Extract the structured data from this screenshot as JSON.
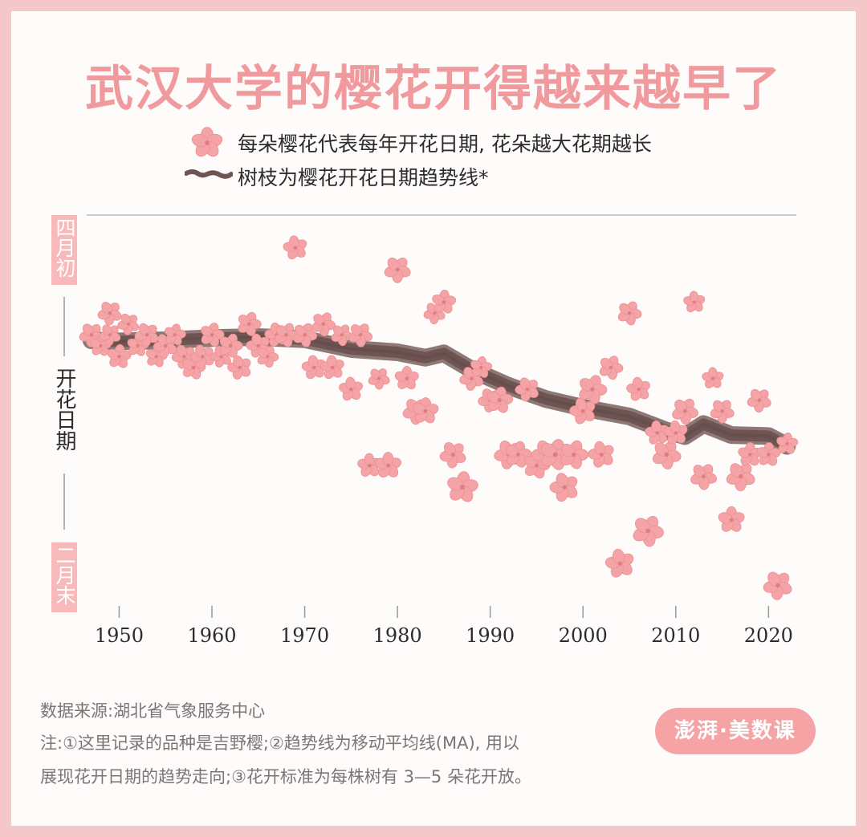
{
  "title": "武汉大学的樱花开得越来越早了",
  "legend": {
    "flower": "每朵樱花代表每年开花日期, 花朵越大花期越长",
    "branch": "树枝为樱花开花日期趋势线*"
  },
  "source": "数据来源:湖北省气象服务中心",
  "notes": [
    "注:①这里记录的品种是吉野樱;②趋势线为移动平均线(MA), 用以",
    "展现花开日期的趋势走向;③花开标准为每株树有 3—5 朵花开放。"
  ],
  "logo": "澎湃·美数课",
  "colors": {
    "title": "#f09a9d",
    "flower": "#f4a4a6",
    "flower_center": "#e07d82",
    "branch": "#6e5553",
    "label_box": "#f7b9ba"
  },
  "chart_data": {
    "type": "scatter",
    "y_axis": {
      "label": "开花日期",
      "top_label": "四月初",
      "bottom_label": "二月末",
      "range": [
        -35,
        2
      ]
    },
    "x_axis": {
      "ticks": [
        1950,
        1960,
        1970,
        1980,
        1990,
        2000,
        2010,
        2020
      ],
      "range": [
        1946.5,
        2023
      ]
    },
    "series": [
      {
        "points": [
          {
            "x": 1947,
            "y": -9,
            "s": 1
          },
          {
            "x": 1948,
            "y": -10,
            "s": 0.9
          },
          {
            "x": 1949,
            "y": -9,
            "s": 0.9
          },
          {
            "x": 1949,
            "y": -7,
            "s": 1
          },
          {
            "x": 1950,
            "y": -11,
            "s": 1
          },
          {
            "x": 1951,
            "y": -8,
            "s": 0.9
          },
          {
            "x": 1952,
            "y": -10,
            "s": 0.9
          },
          {
            "x": 1953,
            "y": -9,
            "s": 1
          },
          {
            "x": 1954,
            "y": -11,
            "s": 0.9
          },
          {
            "x": 1955,
            "y": -10,
            "s": 1
          },
          {
            "x": 1956,
            "y": -9,
            "s": 0.9
          },
          {
            "x": 1957,
            "y": -11,
            "s": 1
          },
          {
            "x": 1958,
            "y": -12,
            "s": 1
          },
          {
            "x": 1959,
            "y": -11,
            "s": 1
          },
          {
            "x": 1960,
            "y": -9,
            "s": 1
          },
          {
            "x": 1961,
            "y": -11,
            "s": 0.9
          },
          {
            "x": 1962,
            "y": -10,
            "s": 1
          },
          {
            "x": 1963,
            "y": -12,
            "s": 1
          },
          {
            "x": 1964,
            "y": -8,
            "s": 1
          },
          {
            "x": 1965,
            "y": -10,
            "s": 1
          },
          {
            "x": 1966,
            "y": -11,
            "s": 0.9
          },
          {
            "x": 1967,
            "y": -9,
            "s": 1
          },
          {
            "x": 1968,
            "y": -9,
            "s": 1
          },
          {
            "x": 1969,
            "y": -1,
            "s": 1
          },
          {
            "x": 1970,
            "y": -9,
            "s": 1
          },
          {
            "x": 1971,
            "y": -12,
            "s": 1
          },
          {
            "x": 1972,
            "y": -8,
            "s": 1
          },
          {
            "x": 1973,
            "y": -12,
            "s": 1
          },
          {
            "x": 1974,
            "y": -9,
            "s": 0.9
          },
          {
            "x": 1975,
            "y": -14,
            "s": 1
          },
          {
            "x": 1976,
            "y": -9,
            "s": 1
          },
          {
            "x": 1977,
            "y": -21,
            "s": 1
          },
          {
            "x": 1978,
            "y": -13,
            "s": 0.9
          },
          {
            "x": 1979,
            "y": -21,
            "s": 1.1
          },
          {
            "x": 1980,
            "y": -3,
            "s": 1.1
          },
          {
            "x": 1981,
            "y": -13,
            "s": 1
          },
          {
            "x": 1982,
            "y": -16,
            "s": 1.1
          },
          {
            "x": 1983,
            "y": -16,
            "s": 1.1
          },
          {
            "x": 1984,
            "y": -7,
            "s": 0.9
          },
          {
            "x": 1985,
            "y": -6,
            "s": 1
          },
          {
            "x": 1986,
            "y": -20,
            "s": 1.1
          },
          {
            "x": 1987,
            "y": -23,
            "s": 1.3
          },
          {
            "x": 1988,
            "y": -13,
            "s": 1
          },
          {
            "x": 1989,
            "y": -12,
            "s": 0.9
          },
          {
            "x": 1990,
            "y": -15,
            "s": 1
          },
          {
            "x": 1991,
            "y": -15,
            "s": 1.1
          },
          {
            "x": 1992,
            "y": -20,
            "s": 1.2
          },
          {
            "x": 1993,
            "y": -20,
            "s": 1.1
          },
          {
            "x": 1994,
            "y": -14,
            "s": 1
          },
          {
            "x": 1995,
            "y": -21,
            "s": 1.1
          },
          {
            "x": 1996,
            "y": -20,
            "s": 1.2
          },
          {
            "x": 1997,
            "y": -20,
            "s": 1.3
          },
          {
            "x": 1998,
            "y": -23,
            "s": 1.2
          },
          {
            "x": 1999,
            "y": -20,
            "s": 1.2
          },
          {
            "x": 2000,
            "y": -16,
            "s": 1.1
          },
          {
            "x": 2001,
            "y": -14,
            "s": 1.2
          },
          {
            "x": 2002,
            "y": -20,
            "s": 1.1
          },
          {
            "x": 2003,
            "y": -12,
            "s": 1
          },
          {
            "x": 2004,
            "y": -30,
            "s": 1.2
          },
          {
            "x": 2005,
            "y": -7,
            "s": 1
          },
          {
            "x": 2006,
            "y": -14,
            "s": 1
          },
          {
            "x": 2007,
            "y": -27,
            "s": 1.3
          },
          {
            "x": 2008,
            "y": -18,
            "s": 1
          },
          {
            "x": 2009,
            "y": -20,
            "s": 1.2
          },
          {
            "x": 2010,
            "y": -18,
            "s": 1
          },
          {
            "x": 2011,
            "y": -16,
            "s": 1.1
          },
          {
            "x": 2012,
            "y": -6,
            "s": 0.9
          },
          {
            "x": 2013,
            "y": -22,
            "s": 1.1
          },
          {
            "x": 2014,
            "y": -13,
            "s": 0.9
          },
          {
            "x": 2015,
            "y": -16,
            "s": 1
          },
          {
            "x": 2016,
            "y": -26,
            "s": 1.1
          },
          {
            "x": 2017,
            "y": -22,
            "s": 1.2
          },
          {
            "x": 2018,
            "y": -20,
            "s": 1
          },
          {
            "x": 2019,
            "y": -15,
            "s": 1
          },
          {
            "x": 2020,
            "y": -20,
            "s": 1
          },
          {
            "x": 2021,
            "y": -32,
            "s": 1.2
          },
          {
            "x": 2022,
            "y": -19,
            "s": 0.9
          }
        ]
      }
    ],
    "trend": [
      {
        "x": 1947,
        "y": -9.5
      },
      {
        "x": 1950,
        "y": -9.6
      },
      {
        "x": 1955,
        "y": -9.5
      },
      {
        "x": 1960,
        "y": -9.3
      },
      {
        "x": 1965,
        "y": -9.2
      },
      {
        "x": 1970,
        "y": -9.4
      },
      {
        "x": 1975,
        "y": -10.3
      },
      {
        "x": 1980,
        "y": -10.6
      },
      {
        "x": 1983,
        "y": -11.1
      },
      {
        "x": 1985,
        "y": -10.7
      },
      {
        "x": 1988,
        "y": -12.2
      },
      {
        "x": 1992,
        "y": -13.7
      },
      {
        "x": 1996,
        "y": -14.9
      },
      {
        "x": 2000,
        "y": -15.7
      },
      {
        "x": 2005,
        "y": -16.5
      },
      {
        "x": 2009,
        "y": -17.8
      },
      {
        "x": 2011,
        "y": -18.3
      },
      {
        "x": 2013,
        "y": -17.2
      },
      {
        "x": 2016,
        "y": -18.2
      },
      {
        "x": 2020,
        "y": -18.3
      },
      {
        "x": 2022,
        "y": -19.2
      }
    ]
  }
}
